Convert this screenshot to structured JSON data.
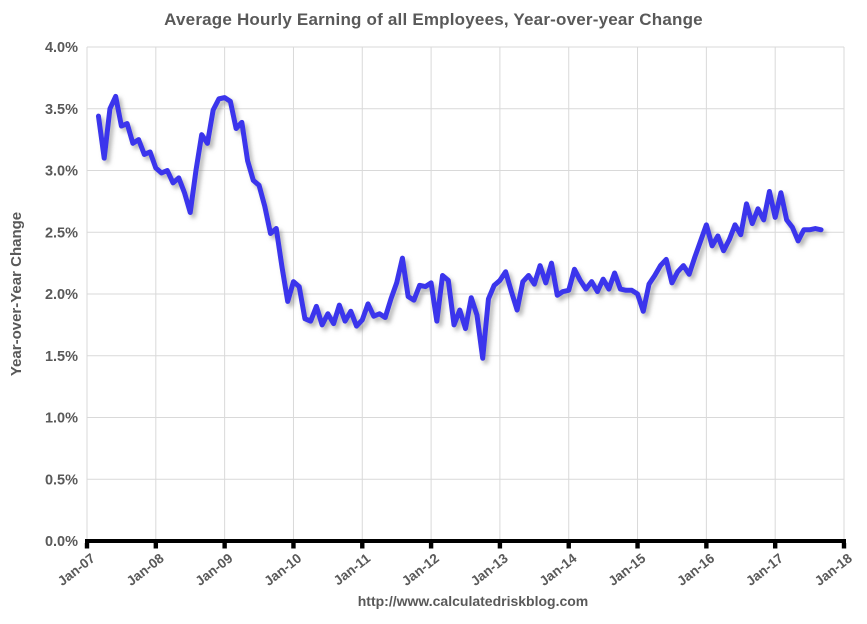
{
  "page": {
    "background": "#ffffff"
  },
  "chart_data": {
    "type": "line",
    "title": "Average Hourly Earning of all Employees, Year-over-year Change",
    "ylabel": "Year-over-Year Change",
    "footer": "http://www.calculatedriskblog.com",
    "legend_position": "none",
    "grid": true,
    "ylim": [
      0.0,
      4.0
    ],
    "y_tick_step": 0.5,
    "y_tick_labels": [
      "0.0%",
      "0.5%",
      "1.0%",
      "1.5%",
      "2.0%",
      "2.5%",
      "3.0%",
      "3.5%",
      "4.0%"
    ],
    "x_tick_labels": [
      "Jan-07",
      "Jan-08",
      "Jan-09",
      "Jan-10",
      "Jan-11",
      "Jan-12",
      "Jan-13",
      "Jan-14",
      "Jan-15",
      "Jan-16",
      "Jan-17",
      "Jan-18"
    ],
    "x_range_months": 132,
    "series": [
      {
        "name": "Average hourly earnings, year-over-year % change",
        "unit": "percent",
        "start_month": "2007-03",
        "end_month": "2017-09",
        "start_month_offset_from_jan07": 2,
        "values": [
          3.44,
          3.1,
          3.5,
          3.6,
          3.36,
          3.38,
          3.22,
          3.25,
          3.13,
          3.15,
          3.02,
          2.98,
          3.0,
          2.9,
          2.94,
          2.82,
          2.66,
          3.0,
          3.29,
          3.22,
          3.49,
          3.58,
          3.59,
          3.56,
          3.34,
          3.39,
          3.08,
          2.92,
          2.88,
          2.71,
          2.49,
          2.53,
          2.22,
          1.94,
          2.1,
          2.06,
          1.8,
          1.78,
          1.9,
          1.75,
          1.84,
          1.76,
          1.91,
          1.78,
          1.86,
          1.74,
          1.79,
          1.92,
          1.82,
          1.84,
          1.81,
          1.96,
          2.09,
          2.29,
          1.98,
          1.95,
          2.07,
          2.06,
          2.09,
          1.78,
          2.15,
          2.11,
          1.75,
          1.87,
          1.72,
          1.97,
          1.83,
          1.48,
          1.96,
          2.07,
          2.11,
          2.18,
          2.02,
          1.87,
          2.1,
          2.15,
          2.08,
          2.23,
          2.09,
          2.25,
          1.99,
          2.02,
          2.03,
          2.2,
          2.11,
          2.04,
          2.1,
          2.02,
          2.12,
          2.04,
          2.17,
          2.04,
          2.03,
          2.03,
          2.0,
          1.86,
          2.08,
          2.15,
          2.23,
          2.28,
          2.09,
          2.18,
          2.23,
          2.16,
          2.3,
          2.43,
          2.56,
          2.39,
          2.47,
          2.35,
          2.44,
          2.56,
          2.48,
          2.73,
          2.57,
          2.69,
          2.6,
          2.83,
          2.62,
          2.82,
          2.6,
          2.54,
          2.43,
          2.52,
          2.52,
          2.53,
          2.52
        ]
      }
    ],
    "colors": {
      "line": "#3A35EC",
      "line_shadow": "#7a7a7a",
      "grid": "#D9D9D9",
      "axis": "#000000",
      "text": "#595959",
      "background": "#ffffff"
    }
  }
}
